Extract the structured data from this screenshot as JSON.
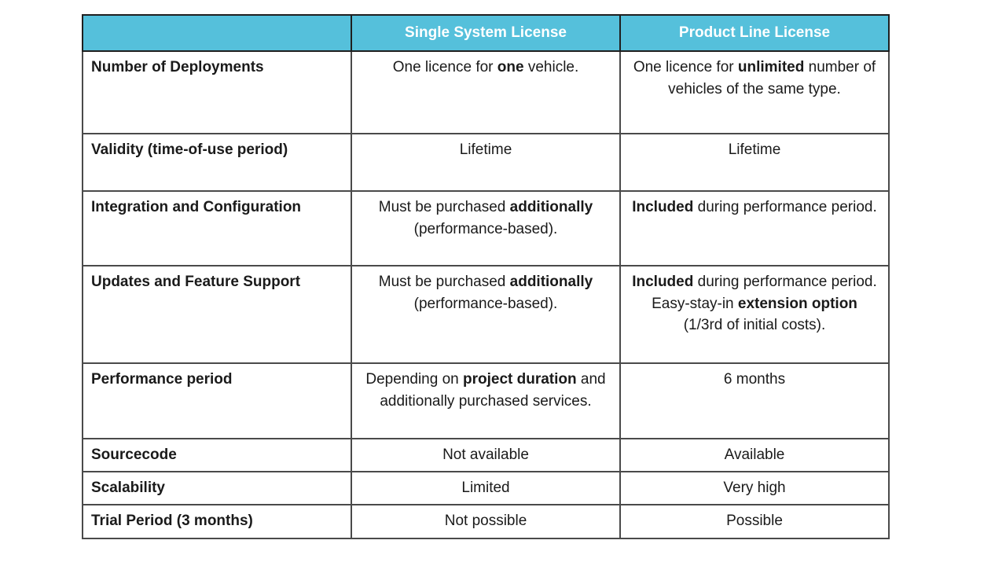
{
  "colors": {
    "header_bg": "#55C0DB",
    "header_text": "#FFFFFF",
    "body_text": "#1A1A1A",
    "grid_border": "#4A4A4A",
    "outer_border": "#1F1F1F",
    "page_bg": "#FFFFFF"
  },
  "table": {
    "headers": [
      "",
      "Single System License",
      "Product Line License"
    ],
    "rows": [
      {
        "label": "Number of Deployments",
        "single": "One licence for **one** vehicle.",
        "product": "One licence for **unlimited** number of vehicles of the same type."
      },
      {
        "label": "Validity (time-of-use period)",
        "single": "Lifetime",
        "product": "Lifetime"
      },
      {
        "label": "Integration and Configuration",
        "single": "Must be purchased **additionally** (performance-based).",
        "product": "**Included** during performance period."
      },
      {
        "label": "Updates and Feature Support",
        "single": "Must be purchased **additionally** (performance-based).",
        "product": "**Included** during performance period. Easy-stay-in **extension option** (1/3rd of initial costs)."
      },
      {
        "label": "Performance period",
        "single": "Depending on **project duration** and additionally purchased services.",
        "product": "6 months"
      },
      {
        "label": "Sourcecode",
        "single": "Not available",
        "product": "Available"
      },
      {
        "label": "Scalability",
        "single": "Limited",
        "product": "Very high"
      },
      {
        "label": "Trial Period (3 months)",
        "single": "Not possible",
        "product": "Possible"
      }
    ]
  }
}
